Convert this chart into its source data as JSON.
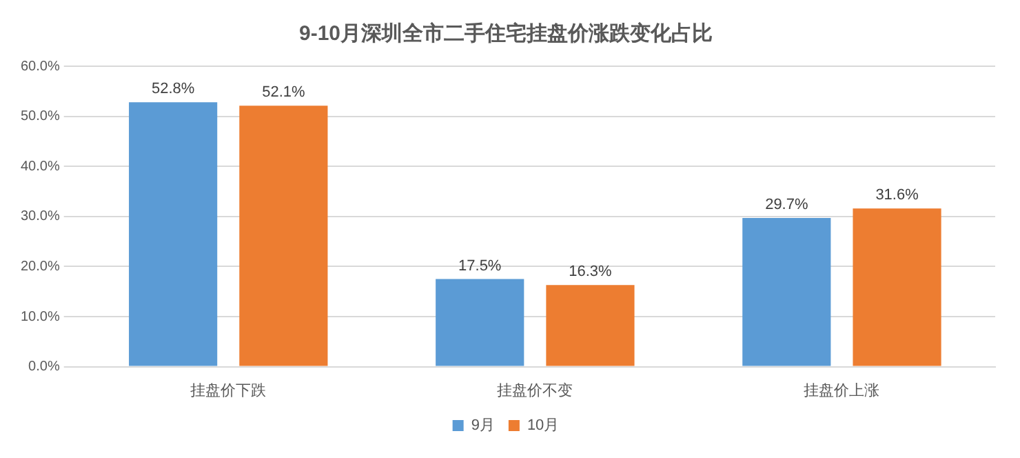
{
  "chart_data": {
    "type": "bar",
    "title": "9-10月深圳全市二手住宅挂盘价涨跌变化占比",
    "categories": [
      "挂盘价下跌",
      "挂盘价不变",
      "挂盘价上涨"
    ],
    "series": [
      {
        "name": "9月",
        "color": "#5b9bd5",
        "values": [
          52.8,
          17.5,
          29.7
        ],
        "value_labels": [
          "52.8%",
          "17.5%",
          "29.7%"
        ]
      },
      {
        "name": "10月",
        "color": "#ed7d31",
        "values": [
          52.1,
          16.3,
          31.6
        ],
        "value_labels": [
          "52.1%",
          "16.3%",
          "31.6%"
        ]
      }
    ],
    "ylim": [
      0,
      60
    ],
    "yticks": [
      {
        "value": 0,
        "label": "0.0%"
      },
      {
        "value": 10,
        "label": "10.0%"
      },
      {
        "value": 20,
        "label": "20.0%"
      },
      {
        "value": 30,
        "label": "30.0%"
      },
      {
        "value": 40,
        "label": "40.0%"
      },
      {
        "value": 50,
        "label": "50.0%"
      },
      {
        "value": 60,
        "label": "60.0%"
      }
    ],
    "grid": "y",
    "legend": "bottom"
  }
}
